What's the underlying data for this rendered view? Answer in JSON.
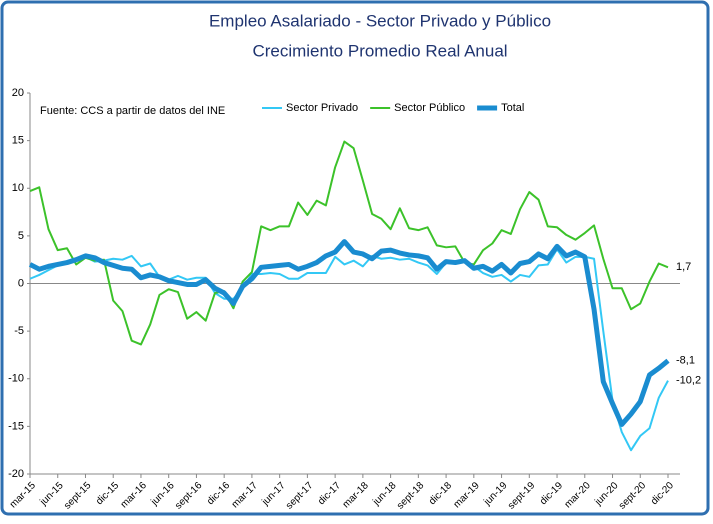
{
  "chart_data": {
    "type": "line",
    "title": "Empleo Asalariado - Sector Privado y Público",
    "subtitle": "Crecimiento Promedio Real Anual",
    "annotation": "Fuente: CCS a partir de datos del INE",
    "categories": [
      "mar-15",
      null,
      null,
      "jun-15",
      null,
      null,
      "sept-15",
      null,
      null,
      "dic-15",
      null,
      null,
      "mar-16",
      null,
      null,
      "jun-16",
      null,
      null,
      "sept-16",
      null,
      null,
      "dic-16",
      null,
      null,
      "mar-17",
      null,
      null,
      "jun-17",
      null,
      null,
      "sept-17",
      null,
      null,
      "dic-17",
      null,
      null,
      "mar-18",
      null,
      null,
      "jun-18",
      null,
      null,
      "sept-18",
      null,
      null,
      "dic-18",
      null,
      null,
      "mar-19",
      null,
      null,
      "jun-19",
      null,
      null,
      "sept-19",
      null,
      null,
      "dic-19",
      null,
      null,
      "mar-20",
      null,
      null,
      "jun-20",
      null,
      null,
      "sept-20",
      null,
      null,
      "dic-20"
    ],
    "ylim": [
      -20,
      20
    ],
    "yticks": [
      -20,
      -15,
      -10,
      -5,
      0,
      5,
      10,
      15,
      20
    ],
    "grid": false,
    "legend": "top",
    "series": [
      {
        "name": "Sector Privado",
        "color": "#33c8f5",
        "width": 2,
        "values": [
          0.5,
          0.9,
          1.4,
          1.9,
          2.2,
          2.5,
          2.8,
          2.3,
          2.4,
          2.6,
          2.5,
          2.9,
          1.8,
          2.1,
          0.7,
          0.4,
          0.8,
          0.4,
          0.6,
          0.6,
          -1.0,
          -1.6,
          -1.6,
          -0.5,
          1.0,
          1.0,
          1.1,
          1.0,
          0.5,
          0.5,
          1.1,
          1.1,
          1.1,
          2.8,
          2.0,
          2.4,
          1.8,
          2.9,
          2.6,
          2.7,
          2.5,
          2.6,
          2.2,
          1.9,
          1.0,
          2.2,
          2.1,
          2.3,
          1.8,
          1.1,
          0.7,
          0.9,
          0.2,
          0.9,
          0.7,
          1.9,
          2.0,
          3.6,
          2.2,
          2.8,
          2.8,
          2.6,
          -5.0,
          -12.3,
          -15.6,
          -17.5,
          -16.0,
          -15.2,
          -12.0,
          -10.2
        ],
        "value_labels": [
          null,
          null,
          null,
          null,
          null,
          null,
          null,
          null,
          null,
          null,
          null,
          null,
          null,
          null,
          null,
          null,
          null,
          null,
          null,
          null,
          null,
          null,
          null,
          null,
          null,
          null,
          null,
          null,
          null,
          null,
          null,
          null,
          null,
          null,
          null,
          null,
          null,
          null,
          null,
          null,
          null,
          null,
          null,
          null,
          null,
          null,
          null,
          null,
          null,
          null,
          null,
          null,
          null,
          null,
          null,
          null,
          null,
          null,
          null,
          null,
          null,
          null,
          null,
          null,
          null,
          null,
          null,
          null,
          null,
          "-10,2"
        ]
      },
      {
        "name": "Sector Público",
        "color": "#3cc22a",
        "width": 2,
        "values": [
          9.7,
          10.1,
          5.7,
          3.5,
          3.7,
          2.0,
          2.7,
          2.4,
          2.5,
          -1.8,
          -2.9,
          -6.0,
          -6.4,
          -4.3,
          -1.2,
          -0.6,
          -0.9,
          -3.7,
          -3.0,
          -3.9,
          -1.0,
          -0.8,
          -2.6,
          0.2,
          1.2,
          6.0,
          5.6,
          6.0,
          6.0,
          8.5,
          7.2,
          8.7,
          8.2,
          12.2,
          14.9,
          14.2,
          10.8,
          7.3,
          6.8,
          5.7,
          7.9,
          5.8,
          5.6,
          5.9,
          4.0,
          3.8,
          3.9,
          2.2,
          2.0,
          3.5,
          4.2,
          5.6,
          5.2,
          7.8,
          9.6,
          8.8,
          6.0,
          5.9,
          5.1,
          4.6,
          5.3,
          6.1,
          2.6,
          -0.5,
          -0.5,
          -2.7,
          -2.1,
          0.2,
          2.1,
          1.7
        ],
        "value_labels": [
          null,
          null,
          null,
          null,
          null,
          null,
          null,
          null,
          null,
          null,
          null,
          null,
          null,
          null,
          null,
          null,
          null,
          null,
          null,
          null,
          null,
          null,
          null,
          null,
          null,
          null,
          null,
          null,
          null,
          null,
          null,
          null,
          null,
          null,
          null,
          null,
          null,
          null,
          null,
          null,
          null,
          null,
          null,
          null,
          null,
          null,
          null,
          null,
          null,
          null,
          null,
          null,
          null,
          null,
          null,
          null,
          null,
          null,
          null,
          null,
          null,
          null,
          null,
          null,
          null,
          null,
          null,
          null,
          null,
          "1,7"
        ]
      },
      {
        "name": "Total",
        "color": "#1a8cd0",
        "width": 5,
        "values": [
          2.0,
          1.5,
          1.8,
          2.0,
          2.2,
          2.5,
          2.9,
          2.7,
          2.2,
          1.9,
          1.6,
          1.5,
          0.6,
          0.9,
          0.7,
          0.3,
          0.1,
          -0.1,
          -0.1,
          0.4,
          -0.5,
          -1.0,
          -2.1,
          -0.3,
          0.5,
          1.7,
          1.8,
          1.9,
          2.0,
          1.5,
          1.8,
          2.2,
          2.9,
          3.3,
          4.4,
          3.3,
          3.1,
          2.6,
          3.4,
          3.5,
          3.2,
          3.0,
          2.9,
          2.7,
          1.5,
          2.3,
          2.2,
          2.4,
          1.6,
          1.8,
          1.3,
          2.0,
          1.1,
          2.1,
          2.3,
          3.1,
          2.6,
          3.9,
          2.9,
          3.3,
          2.8,
          -2.7,
          -10.3,
          -12.6,
          -14.8,
          -13.7,
          -12.4,
          -9.6,
          -8.9,
          -8.1
        ],
        "value_labels": [
          null,
          null,
          null,
          null,
          null,
          null,
          null,
          null,
          null,
          null,
          null,
          null,
          null,
          null,
          null,
          null,
          null,
          null,
          null,
          null,
          null,
          null,
          null,
          null,
          null,
          null,
          null,
          null,
          null,
          null,
          null,
          null,
          null,
          null,
          null,
          null,
          null,
          null,
          null,
          null,
          null,
          null,
          null,
          null,
          null,
          null,
          null,
          null,
          null,
          null,
          null,
          null,
          null,
          null,
          null,
          null,
          null,
          null,
          null,
          null,
          null,
          null,
          null,
          null,
          null,
          null,
          null,
          null,
          null,
          "-8,1"
        ]
      }
    ]
  }
}
